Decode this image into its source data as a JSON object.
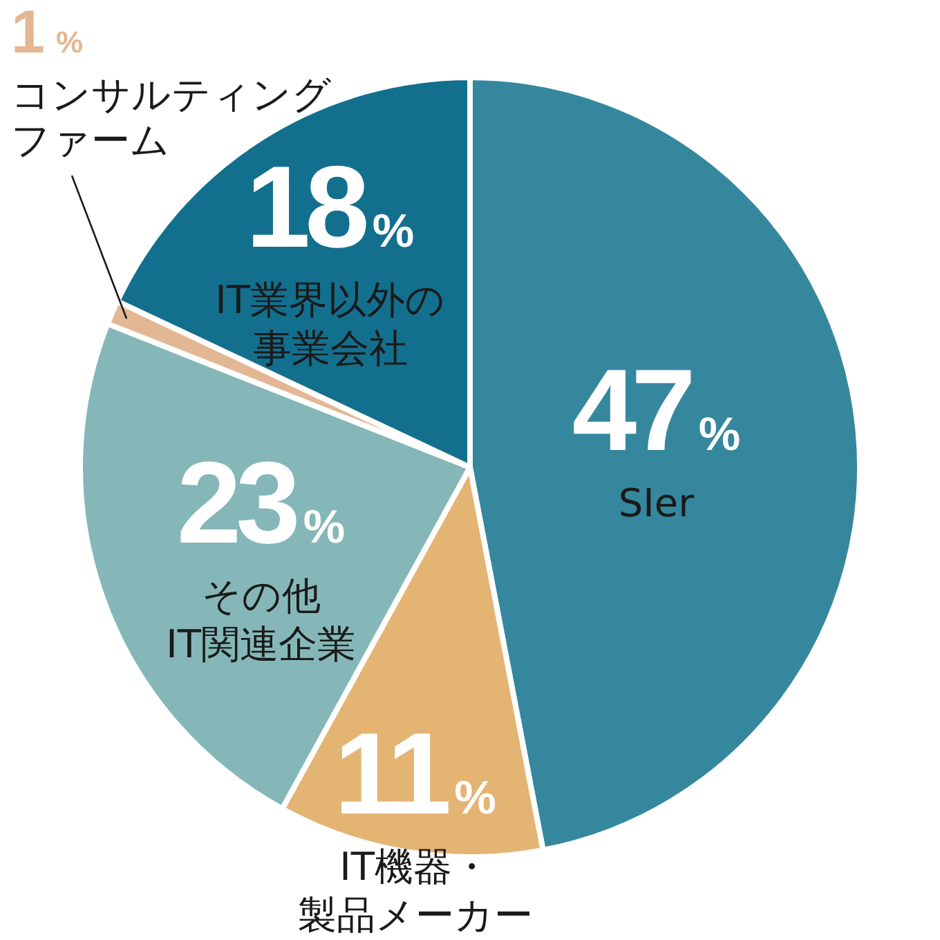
{
  "chart_data": {
    "type": "pie",
    "categories": [
      "SIer",
      "IT機器・製品メーカー",
      "その他IT関連企業",
      "コンサルティングファーム",
      "IT業界以外の事業会社"
    ],
    "values": [
      47,
      11,
      23,
      1,
      18
    ],
    "colors": [
      "#35879e",
      "#e4b473",
      "#85b7b8",
      "#e3b793",
      "#136f8e"
    ],
    "value_labels": [
      "47%",
      "11%",
      "23%",
      "1%",
      "18%"
    ]
  }
}
